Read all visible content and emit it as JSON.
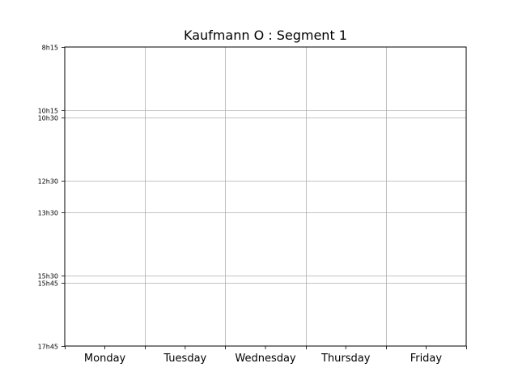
{
  "chart_data": {
    "type": "table",
    "title": "Kaufmann O : Segment 1",
    "xlabel": "",
    "ylabel": "",
    "categories": [
      "Monday",
      "Tuesday",
      "Wednesday",
      "Thursday",
      "Friday"
    ],
    "time_ticks": [
      {
        "label": "8h15",
        "hours": 8.25
      },
      {
        "label": "10h15",
        "hours": 10.25
      },
      {
        "label": "10h30",
        "hours": 10.5
      },
      {
        "label": "12h30",
        "hours": 12.5
      },
      {
        "label": "13h30",
        "hours": 13.5
      },
      {
        "label": "15h30",
        "hours": 15.5
      },
      {
        "label": "15h45",
        "hours": 15.75
      },
      {
        "label": "17h45",
        "hours": 17.75
      }
    ],
    "ylim": [
      8.25,
      17.75
    ],
    "y_inverted": true,
    "grid": true,
    "series": []
  }
}
